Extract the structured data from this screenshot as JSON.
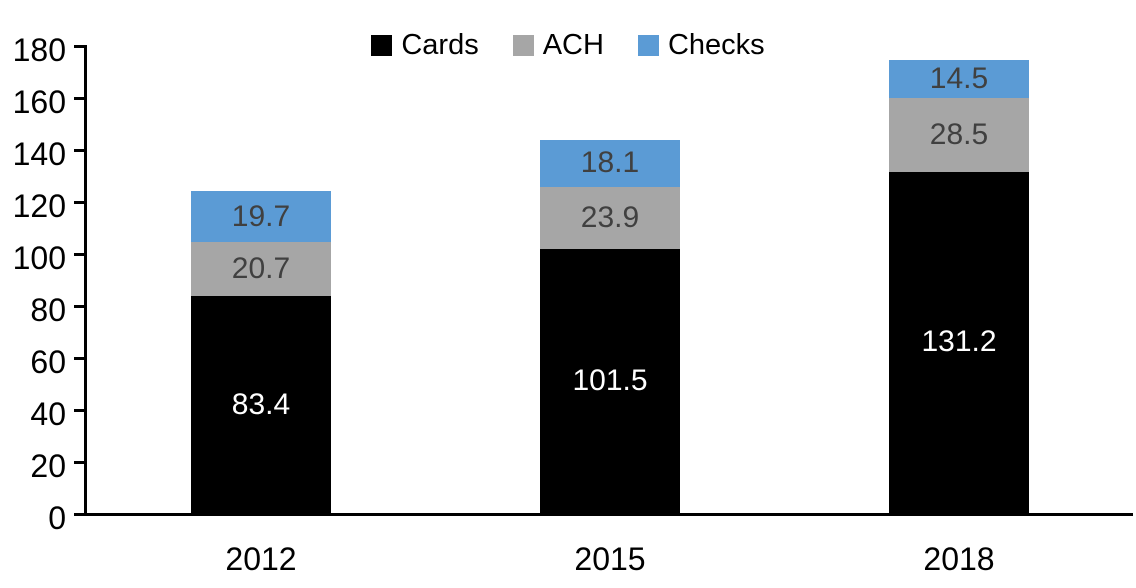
{
  "chart_data": {
    "type": "bar",
    "stacked": true,
    "title": "",
    "xlabel": "",
    "ylabel": "",
    "categories": [
      "2012",
      "2015",
      "2018"
    ],
    "series": [
      {
        "name": "Cards",
        "color": "#000000",
        "label_color": "#ffffff",
        "values": [
          83.4,
          101.5,
          131.2
        ]
      },
      {
        "name": "ACH",
        "color": "#A6A6A6",
        "label_color": "#404040",
        "values": [
          20.7,
          23.9,
          28.5
        ]
      },
      {
        "name": "Checks",
        "color": "#5B9BD5",
        "label_color": "#404040",
        "values": [
          19.7,
          18.1,
          14.5
        ]
      }
    ],
    "totals": [
      123.8,
      143.5,
      174.2
    ],
    "ylim": [
      0,
      180
    ],
    "yticks": [
      0,
      20,
      40,
      60,
      80,
      100,
      120,
      140,
      160,
      180
    ],
    "grid": false,
    "legend_position": "top",
    "axis_color": "#000000"
  }
}
